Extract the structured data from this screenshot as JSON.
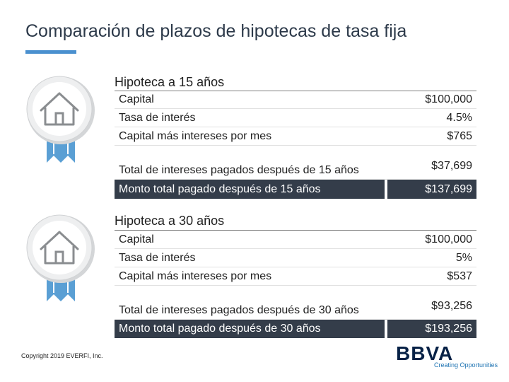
{
  "header": {
    "title": "Comparación de plazos de hipotecas de tasa fija"
  },
  "sections": [
    {
      "title": "Hipoteca a 15 años",
      "rows": [
        {
          "label": "Capital",
          "value": "$100,000"
        },
        {
          "label": "Tasa de interés",
          "value": "4.5%"
        },
        {
          "label": "Capital más intereses por mes",
          "value": "$765"
        },
        {
          "label": "Total de intereses pagados después de 15 años",
          "value": "$37,699"
        },
        {
          "label": "Monto total pagado después de 15 años",
          "value": "$137,699"
        }
      ]
    },
    {
      "title": "Hipoteca a 30 años",
      "rows": [
        {
          "label": "Capital",
          "value": "$100,000"
        },
        {
          "label": "Tasa de interés",
          "value": "5%"
        },
        {
          "label": "Capital más intereses por mes",
          "value": "$537"
        },
        {
          "label": "Total de intereses pagados después de 30 años",
          "value": "$93,256"
        },
        {
          "label": "Monto total pagado después de 30 años",
          "value": "$193,256"
        }
      ]
    }
  ],
  "footer": {
    "copyright": "Copyright 2019 EVERFI, Inc.",
    "logo_text": "BBVA",
    "tagline": "Creating Opportunities"
  },
  "colors": {
    "accent": "#4a90cf",
    "total_row_bg": "#343d4a",
    "badge_ribbon": "#5a9fd4",
    "brand": "#072146"
  },
  "icons": [
    "house-award-badge-icon"
  ]
}
